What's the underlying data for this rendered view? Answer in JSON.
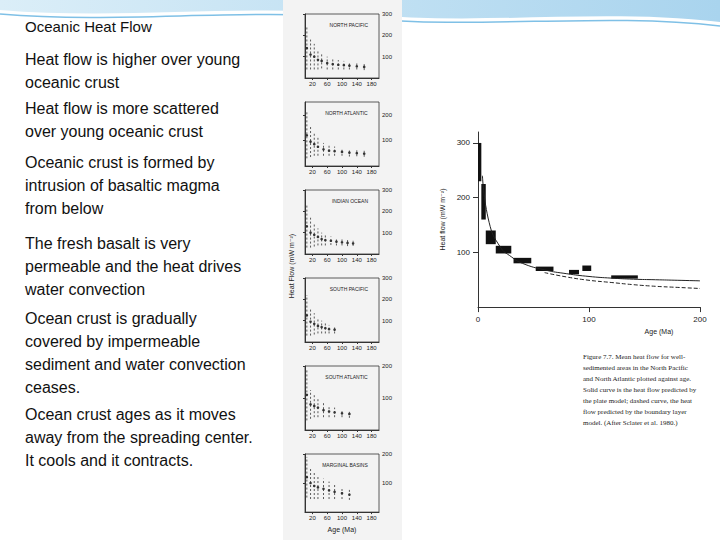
{
  "slide": {
    "title": "Oceanic Heat Flow",
    "bullets": [
      [
        "Heat flow is higher over young",
        "oceanic crust"
      ],
      [
        "Heat flow is more scattered",
        "over young oceanic crust"
      ],
      [
        "Oceanic crust is formed by",
        "intrusion of basaltic magma",
        "from below"
      ],
      [
        "The fresh basalt is very",
        "permeable and the heat drives",
        "water convection"
      ],
      [
        "Ocean crust is gradually",
        "covered by impermeable",
        "sediment and water convection",
        "ceases."
      ],
      [
        "Ocean crust ages as it moves",
        "away from the spreading center.",
        "It cools and it contracts."
      ]
    ]
  },
  "panels_y_label": "Heat Flow (mW m⁻²)",
  "chart_data": [
    {
      "type": "scatter",
      "title": "NORTH PACIFIC",
      "color": "#333333",
      "line_style": "dashed",
      "x": [
        5,
        15,
        25,
        35,
        45,
        60,
        75,
        90,
        105,
        120,
        140,
        160
      ],
      "values": [
        140,
        110,
        100,
        85,
        80,
        70,
        65,
        62,
        60,
        58,
        55,
        52
      ],
      "errors": [
        100,
        70,
        60,
        45,
        35,
        30,
        25,
        22,
        20,
        18,
        15,
        15
      ],
      "xlim": [
        0,
        200
      ],
      "xticks": [
        20,
        60,
        100,
        140,
        180
      ],
      "ylim": [
        0,
        300
      ],
      "yticks": [
        100,
        200,
        300
      ]
    },
    {
      "type": "scatter",
      "title": "NORTH ATLANTIC",
      "color": "#333333",
      "line_style": "dashed",
      "x": [
        5,
        15,
        25,
        35,
        50,
        65,
        80,
        100,
        120,
        140,
        160
      ],
      "values": [
        120,
        95,
        85,
        75,
        65,
        60,
        58,
        55,
        52,
        50,
        48
      ],
      "errors": [
        90,
        60,
        45,
        35,
        25,
        20,
        18,
        15,
        15,
        12,
        12
      ],
      "xlim": [
        0,
        200
      ],
      "xticks": [
        20,
        60,
        100,
        140,
        180
      ],
      "ylim": [
        0,
        250
      ],
      "yticks": [
        100,
        200
      ]
    },
    {
      "type": "scatter",
      "title": "INDIAN OCEAN",
      "color": "#333333",
      "line_style": "dashed",
      "x": [
        5,
        15,
        25,
        35,
        45,
        55,
        70,
        85,
        100,
        115,
        130
      ],
      "values": [
        130,
        100,
        90,
        80,
        70,
        65,
        62,
        58,
        55,
        52,
        50
      ],
      "errors": [
        100,
        70,
        55,
        40,
        30,
        25,
        20,
        18,
        15,
        15,
        12
      ],
      "xlim": [
        0,
        200
      ],
      "xticks": [
        20,
        60,
        100,
        140,
        180
      ],
      "ylim": [
        0,
        300
      ],
      "yticks": [
        100,
        200,
        300
      ]
    },
    {
      "type": "scatter",
      "title": "SOUTH PACIFIC",
      "color": "#333333",
      "line_style": "dashed",
      "x": [
        5,
        15,
        25,
        35,
        45,
        55,
        65,
        80
      ],
      "values": [
        125,
        95,
        85,
        75,
        70,
        65,
        60,
        58
      ],
      "errors": [
        95,
        65,
        50,
        35,
        30,
        25,
        20,
        18
      ],
      "xlim": [
        0,
        200
      ],
      "xticks": [
        20,
        60,
        100,
        140,
        180
      ],
      "ylim": [
        0,
        300
      ],
      "yticks": [
        100,
        200,
        300
      ]
    },
    {
      "type": "scatter",
      "title": "SOUTH ATLANTIC",
      "color": "#333333",
      "line_style": "dashed",
      "x": [
        5,
        15,
        25,
        35,
        50,
        65,
        80,
        100,
        120
      ],
      "values": [
        110,
        80,
        75,
        70,
        62,
        58,
        55,
        52,
        50
      ],
      "errors": [
        80,
        45,
        35,
        30,
        22,
        18,
        15,
        12,
        12
      ],
      "xlim": [
        0,
        200
      ],
      "xticks": [
        20,
        60,
        100,
        140,
        180
      ],
      "ylim": [
        0,
        200
      ],
      "yticks": [
        100,
        200
      ]
    },
    {
      "type": "scatter",
      "title": "MARGINAL BASINS",
      "color": "#333333",
      "line_style": "dashed",
      "x": [
        5,
        15,
        25,
        35,
        50,
        65,
        80,
        100,
        120
      ],
      "values": [
        120,
        100,
        90,
        85,
        80,
        75,
        70,
        65,
        60
      ],
      "errors": [
        70,
        55,
        45,
        40,
        35,
        30,
        25,
        20,
        18
      ],
      "x_label": "Age (Ma)",
      "xlim": [
        0,
        200
      ],
      "xticks": [
        20,
        60,
        100,
        140,
        180
      ],
      "ylim": [
        0,
        200
      ],
      "yticks": [
        100,
        200
      ]
    },
    {
      "type": "line",
      "x_label": "Age (Ma)",
      "y_label": "Heat flow (mW m⁻²)",
      "color": "#111111",
      "xlim": [
        0,
        200
      ],
      "xticks": [
        0,
        100,
        200
      ],
      "ylim": [
        0,
        320
      ],
      "yticks": [
        100,
        200,
        300
      ],
      "boxes": {
        "x_start": [
          0,
          3,
          7,
          16,
          32,
          52,
          82,
          94,
          120
        ],
        "x_end": [
          3,
          7,
          16,
          30,
          48,
          68,
          91,
          102,
          144
        ],
        "low": [
          230,
          160,
          115,
          98,
          80,
          66,
          60,
          66,
          52
        ],
        "high": [
          300,
          225,
          140,
          112,
          90,
          74,
          68,
          76,
          58
        ]
      },
      "series": [
        {
          "x": [
            4,
            10,
            20,
            30,
            40,
            60,
            80,
            100,
            120,
            140,
            160,
            180,
            200
          ],
          "values": [
            240,
            155,
            110,
            92,
            80,
            68,
            61,
            56,
            53,
            51,
            50,
            49,
            48
          ],
          "line_style": "solid",
          "color": "#222222"
        },
        {
          "x": [
            60,
            80,
            100,
            120,
            140,
            160,
            180,
            200
          ],
          "values": [
            63,
            55,
            49,
            45,
            41,
            38,
            36,
            34
          ],
          "line_style": "dashed",
          "color": "#222222"
        }
      ]
    }
  ],
  "caption": [
    "Figure 7.7. Mean heat flow for well-",
    "sedimented areas in the North Pacific",
    "and North Atlantic plotted against age.",
    "Solid curve is the heat flow predicted by",
    "the plate model; dashed curve, the heat",
    "flow predicted by the boundary layer",
    "model. (After Sclater et al. 1980.)"
  ]
}
